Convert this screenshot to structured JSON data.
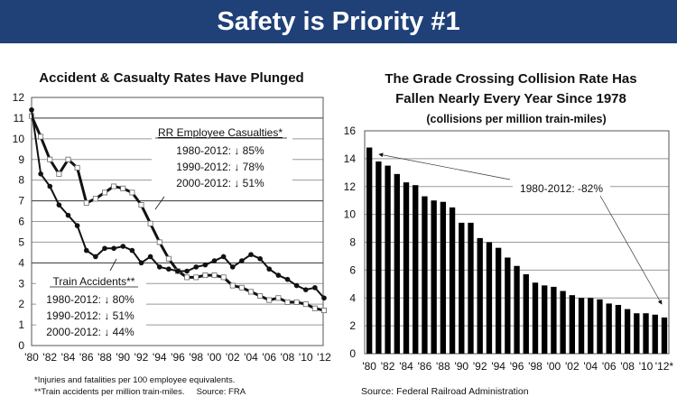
{
  "banner": {
    "title": "Safety is Priority #1"
  },
  "chart_data": [
    {
      "type": "line",
      "title": "Accident & Casualty Rates Have Plunged",
      "x": [
        1980,
        1981,
        1982,
        1983,
        1984,
        1985,
        1986,
        1987,
        1988,
        1989,
        1990,
        1991,
        1992,
        1993,
        1994,
        1995,
        1996,
        1997,
        1998,
        1999,
        2000,
        2001,
        2002,
        2003,
        2004,
        2005,
        2006,
        2007,
        2008,
        2009,
        2010,
        2011,
        2012
      ],
      "xticks": [
        "'80",
        "'82",
        "'84",
        "'86",
        "'88",
        "'90",
        "'92",
        "'94",
        "'96",
        "'98",
        "'00",
        "'02",
        "'04",
        "'06",
        "'08",
        "'10",
        "'12"
      ],
      "yticks": [
        "0",
        "1",
        "2",
        "3",
        "4",
        "5",
        "6",
        "7",
        "8",
        "9",
        "10",
        "11",
        "12"
      ],
      "ylim": [
        0,
        12
      ],
      "grid": true,
      "series": [
        {
          "name": "Train Accidents**",
          "marker": "filled-circle",
          "values": [
            11.4,
            8.3,
            7.7,
            6.8,
            6.3,
            5.8,
            4.6,
            4.3,
            4.7,
            4.7,
            4.8,
            4.6,
            4.0,
            4.3,
            3.8,
            3.7,
            3.6,
            3.6,
            3.8,
            3.9,
            4.1,
            4.3,
            3.8,
            4.1,
            4.4,
            4.2,
            3.7,
            3.4,
            3.2,
            2.9,
            2.7,
            2.8,
            2.3
          ],
          "annotations": [
            "1980-2012: ↓ 80%",
            "1990-2012: ↓ 51%",
            "2000-2012: ↓ 44%"
          ]
        },
        {
          "name": "RR Employee Casualties*",
          "marker": "open-square",
          "values": [
            11.1,
            10.1,
            9.0,
            8.3,
            9.0,
            8.6,
            6.9,
            7.1,
            7.4,
            7.7,
            7.6,
            7.4,
            6.8,
            5.9,
            5.0,
            4.2,
            3.6,
            3.3,
            3.3,
            3.4,
            3.4,
            3.3,
            2.9,
            2.8,
            2.6,
            2.4,
            2.2,
            2.3,
            2.1,
            2.1,
            2.0,
            1.8,
            1.7
          ],
          "annotations": [
            "1980-2012: ↓ 85%",
            "1990-2012: ↓ 78%",
            "2000-2012: ↓ 51%"
          ]
        }
      ],
      "footnotes": [
        "*Injuries and fatalities per 100 employee equivalents.",
        "**Train accidents per million train-miles.     Source: FRA"
      ]
    },
    {
      "type": "bar",
      "title": [
        "The Grade Crossing Collision Rate Has",
        "Fallen Nearly Every Year Since 1978"
      ],
      "subtitle": "(collisions per million train-miles)",
      "x": [
        1980,
        1981,
        1982,
        1983,
        1984,
        1985,
        1986,
        1987,
        1988,
        1989,
        1990,
        1991,
        1992,
        1993,
        1994,
        1995,
        1996,
        1997,
        1998,
        1999,
        2000,
        2001,
        2002,
        2003,
        2004,
        2005,
        2006,
        2007,
        2008,
        2009,
        2010,
        2011,
        2012
      ],
      "values": [
        14.8,
        13.8,
        13.5,
        12.9,
        12.3,
        12.1,
        11.3,
        11.0,
        10.9,
        10.5,
        9.4,
        9.4,
        8.3,
        8.0,
        7.6,
        6.9,
        6.3,
        5.7,
        5.1,
        4.9,
        4.8,
        4.5,
        4.2,
        4.0,
        4.0,
        3.9,
        3.6,
        3.5,
        3.2,
        2.9,
        2.9,
        2.8,
        2.6
      ],
      "xticks": [
        "'80",
        "'82",
        "'84",
        "'86",
        "'88",
        "'90",
        "'92",
        "'94",
        "'96",
        "'98",
        "'00",
        "'02",
        "'04",
        "'06",
        "'08",
        "'10",
        "'12*"
      ],
      "yticks": [
        "0",
        "2",
        "4",
        "6",
        "8",
        "10",
        "12",
        "14",
        "16"
      ],
      "ylim": [
        0,
        16
      ],
      "grid": true,
      "annotation": "1980-2012: -82%",
      "source": "Source: Federal Railroad Administration"
    }
  ]
}
